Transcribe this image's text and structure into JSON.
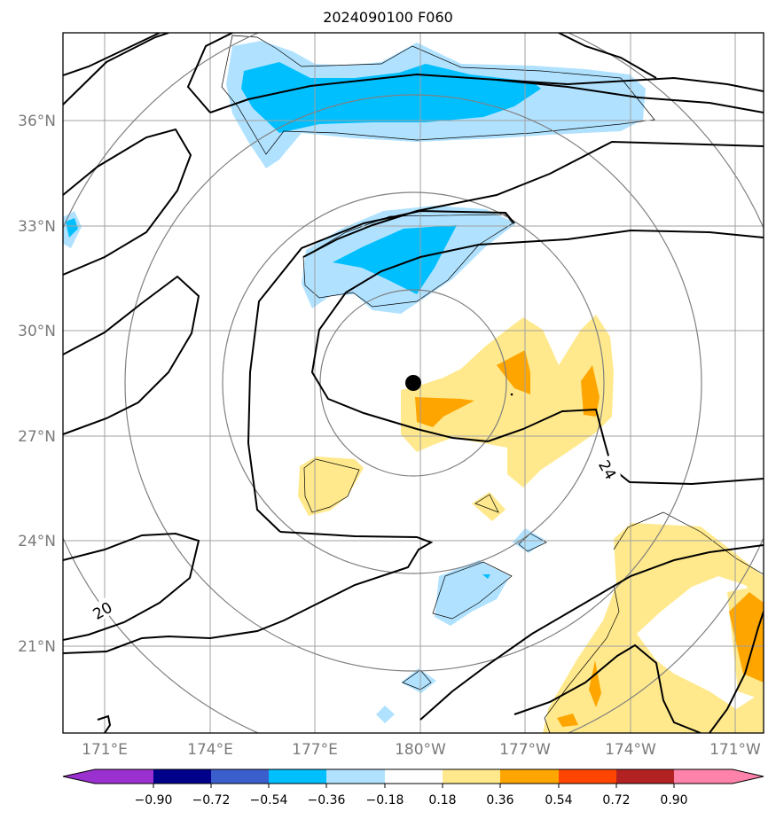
{
  "title": "2024090100 F060",
  "lat_labels": [
    "36°N",
    "33°N",
    "30°N",
    "27°N",
    "24°N",
    "21°N"
  ],
  "lon_labels": [
    "171°E",
    "174°E",
    "177°E",
    "180°W",
    "177°W",
    "174°W",
    "171°W"
  ],
  "contour_labels": [
    "20",
    "24"
  ],
  "colorbar": {
    "ticks": [
      "−0.90",
      "−0.72",
      "−0.54",
      "−0.36",
      "−0.18",
      "0.18",
      "0.36",
      "0.54",
      "0.72",
      "0.90"
    ],
    "colors": [
      "#9b30d0",
      "#00008b",
      "#3a5fcd",
      "#00bfff",
      "#b0e2ff",
      "#ffffff",
      "#ffe98c",
      "#ffa500",
      "#ff4500",
      "#b22222",
      "#ff82ab"
    ]
  },
  "center_marker": "black-dot"
}
